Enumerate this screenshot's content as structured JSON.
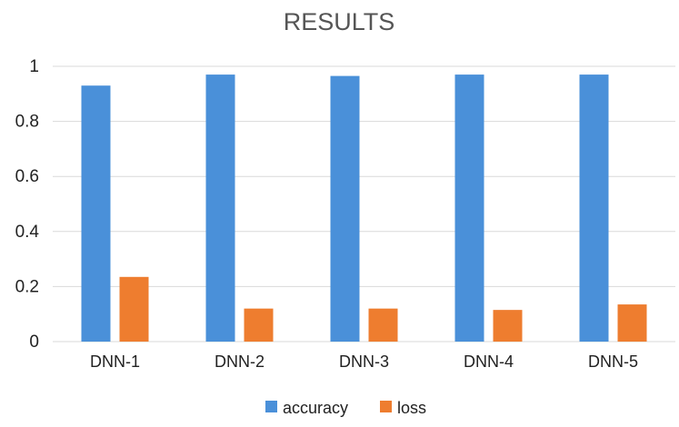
{
  "chart_data": {
    "type": "bar",
    "title": "RESULTS",
    "xlabel": "",
    "ylabel": "",
    "categories": [
      "DNN-1",
      "DNN-2",
      "DNN-3",
      "DNN-4",
      "DNN-5"
    ],
    "series": [
      {
        "name": "accuracy",
        "color": "#4a90d9",
        "values": [
          0.93,
          0.97,
          0.965,
          0.97,
          0.97
        ]
      },
      {
        "name": "loss",
        "color": "#ee7d2f",
        "values": [
          0.235,
          0.12,
          0.12,
          0.115,
          0.135
        ]
      }
    ],
    "ylim": [
      0,
      1
    ],
    "yticks": [
      0,
      0.2,
      0.4,
      0.6,
      0.8,
      1
    ],
    "ytick_labels": [
      "0",
      "0.2",
      "0.4",
      "0.6",
      "0.8",
      "1"
    ],
    "grid": "horizontal",
    "legend": {
      "placement": "bottom-center",
      "entries": [
        "accuracy",
        "loss"
      ]
    }
  },
  "colors": {
    "grid": "#d9d9d9",
    "axis_text": "#222222",
    "title_text": "#555555"
  }
}
